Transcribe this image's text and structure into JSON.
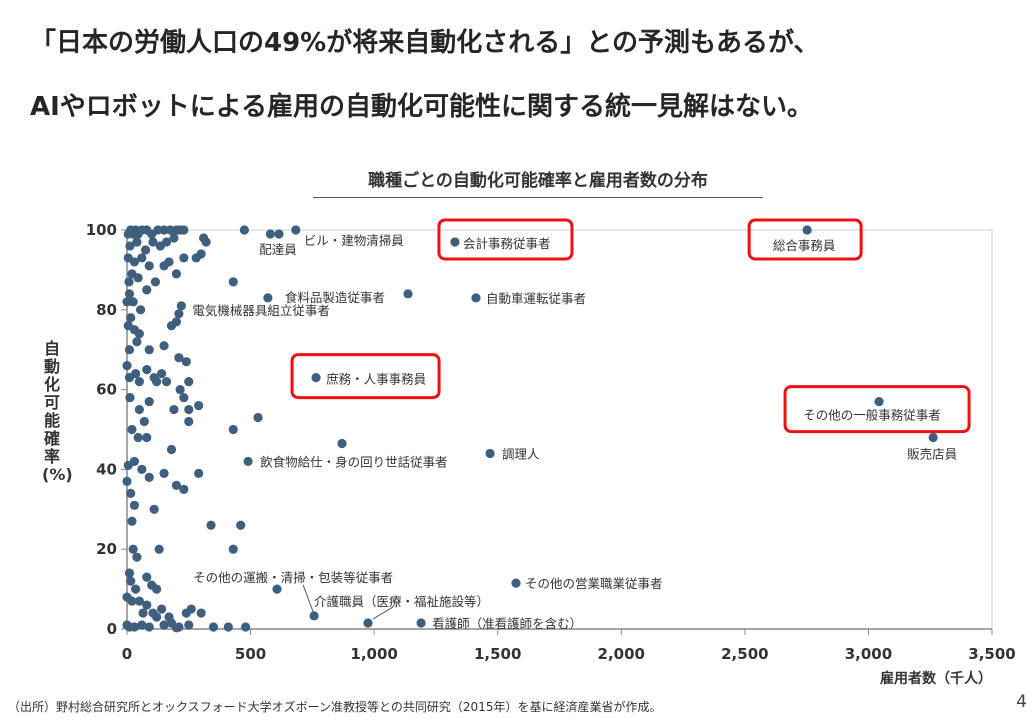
{
  "headline": {
    "line1": "「日本の労働人口の49%が将来自動化される」との予測もあるが、",
    "line2": "AIやロボットによる雇用の自動化可能性に関する統一見解はない。"
  },
  "footer": {
    "source": "（出所）野村総合研究所とオックスフォード大学オズボーン准教授等との共同研究（2015年）を基に経済産業省が作成。",
    "page_number": "4"
  },
  "colors": {
    "point": "#3e5f7d",
    "highlight": "#ee1111",
    "axis": "#888888"
  },
  "chart_data": {
    "type": "scatter",
    "title": "職種ごとの自動化可能確率と雇用者数の分布",
    "xlabel": "雇用者数（千人）",
    "ylabel": "自動化可能確率(%)",
    "xlim": [
      0,
      3500
    ],
    "ylim": [
      0,
      100
    ],
    "x_ticks": [
      "0",
      "500",
      "1,000",
      "1,500",
      "2,000",
      "2,500",
      "3,000",
      "3,500"
    ],
    "y_ticks": [
      "0",
      "20",
      "40",
      "60",
      "80",
      "100"
    ],
    "grid": false,
    "labeled_points": [
      {
        "label": "配達員",
        "x": 615,
        "y": 99,
        "highlighted": false
      },
      {
        "label": "ビル・建物清掃員",
        "x": 683,
        "y": 100,
        "highlighted": false
      },
      {
        "label": "会計事務従事者",
        "x": 1327,
        "y": 97,
        "highlighted": true
      },
      {
        "label": "総合事務員",
        "x": 2752,
        "y": 100,
        "highlighted": true
      },
      {
        "label": "食料品製造従事者",
        "x": 570,
        "y": 83,
        "highlighted": false
      },
      {
        "label": "電気機械器具組立従事者",
        "x": 220,
        "y": 81,
        "highlighted": false
      },
      {
        "label": "自動車運転従事者",
        "x": 1412,
        "y": 83,
        "highlighted": false
      },
      {
        "label": "庶務・人事事務員",
        "x": 765,
        "y": 63,
        "highlighted": true
      },
      {
        "label": "その他の一般事務従事者",
        "x": 3043,
        "y": 57,
        "highlighted": true
      },
      {
        "label": "販売店員",
        "x": 3262,
        "y": 48,
        "highlighted": false
      },
      {
        "label": "調理人",
        "x": 1469,
        "y": 44,
        "highlighted": false
      },
      {
        "label": "飲食物給仕・身の回り世話従事者",
        "x": 490,
        "y": 42,
        "highlighted": false
      },
      {
        "label": "その他の営業職業従事者",
        "x": 1574,
        "y": 11.5,
        "highlighted": false
      },
      {
        "label": "その他の運搬・清掃・包装等従事者",
        "x": 757,
        "y": 3.3,
        "highlighted": false
      },
      {
        "label": "介護職員（医療・福祉施設等）",
        "x": 975,
        "y": 1.5,
        "highlighted": false
      },
      {
        "label": "看護師（准看護師を含む）",
        "x": 1190,
        "y": 1.5,
        "highlighted": false
      }
    ],
    "points": [
      [
        5,
        99
      ],
      [
        15,
        100
      ],
      [
        25,
        99
      ],
      [
        35,
        100
      ],
      [
        45,
        99
      ],
      [
        60,
        100
      ],
      [
        80,
        100
      ],
      [
        100,
        99
      ],
      [
        125,
        100
      ],
      [
        150,
        100
      ],
      [
        175,
        100
      ],
      [
        200,
        100
      ],
      [
        215,
        100
      ],
      [
        230,
        100
      ],
      [
        475,
        100
      ],
      [
        580,
        99
      ],
      [
        12,
        96
      ],
      [
        40,
        97
      ],
      [
        75,
        95
      ],
      [
        105,
        97
      ],
      [
        135,
        96
      ],
      [
        160,
        97
      ],
      [
        190,
        98
      ],
      [
        310,
        98
      ],
      [
        320,
        97
      ],
      [
        5,
        93
      ],
      [
        30,
        92
      ],
      [
        60,
        93
      ],
      [
        90,
        91
      ],
      [
        20,
        89
      ],
      [
        150,
        91
      ],
      [
        170,
        92
      ],
      [
        230,
        93
      ],
      [
        300,
        94
      ],
      [
        280,
        93
      ],
      [
        8,
        87
      ],
      [
        45,
        88
      ],
      [
        80,
        85
      ],
      [
        115,
        87
      ],
      [
        200,
        89
      ],
      [
        430,
        87
      ],
      [
        1137,
        84
      ],
      [
        10,
        84
      ],
      [
        0,
        82
      ],
      [
        25,
        82
      ],
      [
        55,
        80
      ],
      [
        15,
        78
      ],
      [
        210,
        79
      ],
      [
        5,
        76
      ],
      [
        30,
        75
      ],
      [
        50,
        74
      ],
      [
        180,
        76
      ],
      [
        200,
        77
      ],
      [
        10,
        70
      ],
      [
        40,
        72
      ],
      [
        90,
        70
      ],
      [
        150,
        71
      ],
      [
        210,
        68
      ],
      [
        0,
        66
      ],
      [
        35,
        64
      ],
      [
        80,
        65
      ],
      [
        140,
        64
      ],
      [
        160,
        62
      ],
      [
        240,
        67
      ],
      [
        10,
        63
      ],
      [
        50,
        62
      ],
      [
        110,
        63
      ],
      [
        120,
        62
      ],
      [
        250,
        62
      ],
      [
        290,
        56
      ],
      [
        530,
        53
      ],
      [
        12,
        58
      ],
      [
        50,
        55
      ],
      [
        70,
        52
      ],
      [
        90,
        57
      ],
      [
        190,
        55
      ],
      [
        215,
        60
      ],
      [
        230,
        58
      ],
      [
        250,
        55
      ],
      [
        20,
        50
      ],
      [
        45,
        48
      ],
      [
        80,
        48
      ],
      [
        430,
        50
      ],
      [
        250,
        52
      ],
      [
        180,
        45
      ],
      [
        870,
        46.5
      ],
      [
        5,
        41
      ],
      [
        30,
        42
      ],
      [
        60,
        40
      ],
      [
        90,
        38
      ],
      [
        150,
        39
      ],
      [
        200,
        36
      ],
      [
        230,
        35
      ],
      [
        290,
        39
      ],
      [
        0,
        37
      ],
      [
        15,
        34
      ],
      [
        30,
        31
      ],
      [
        110,
        30
      ],
      [
        340,
        26
      ],
      [
        460,
        26
      ],
      [
        20,
        27
      ],
      [
        25,
        20
      ],
      [
        40,
        18
      ],
      [
        130,
        20
      ],
      [
        430,
        20
      ],
      [
        10,
        14
      ],
      [
        15,
        12
      ],
      [
        35,
        10
      ],
      [
        80,
        13
      ],
      [
        100,
        11
      ],
      [
        120,
        10
      ],
      [
        607,
        10
      ],
      [
        0,
        8
      ],
      [
        20,
        7
      ],
      [
        50,
        7
      ],
      [
        80,
        6
      ],
      [
        65,
        4
      ],
      [
        105,
        4
      ],
      [
        120,
        3
      ],
      [
        140,
        5
      ],
      [
        170,
        3
      ],
      [
        240,
        4
      ],
      [
        260,
        5
      ],
      [
        300,
        4
      ],
      [
        0,
        1
      ],
      [
        10,
        0.5
      ],
      [
        30,
        0.5
      ],
      [
        60,
        1
      ],
      [
        90,
        0.5
      ],
      [
        150,
        1
      ],
      [
        180,
        1.5
      ],
      [
        210,
        0.5
      ],
      [
        250,
        1
      ],
      [
        350,
        0.5
      ],
      [
        410,
        0.5
      ],
      [
        480,
        0.5
      ],
      [
        200,
        0.3
      ]
    ]
  }
}
